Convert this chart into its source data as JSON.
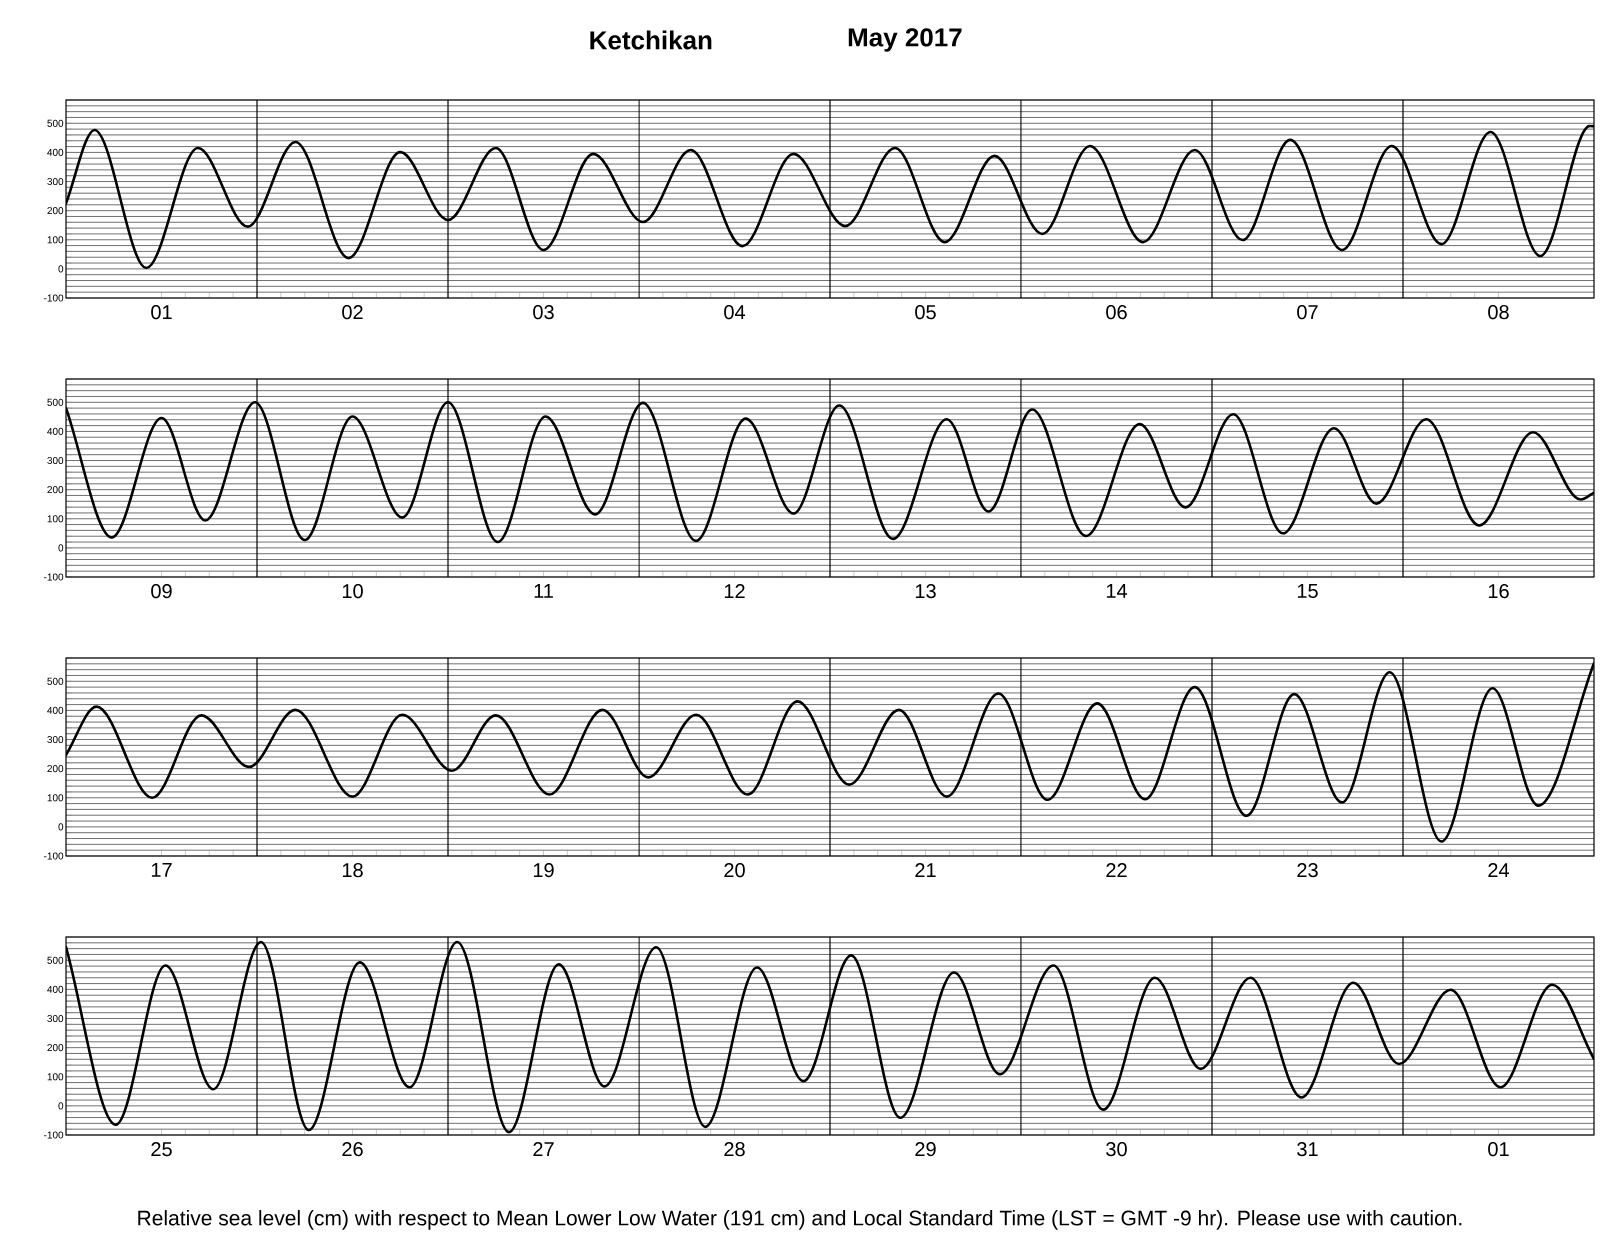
{
  "chart_data": [
    {
      "type": "line",
      "title": "Ketchikan",
      "subtitle": "May   2017",
      "grid": "y",
      "xlim": [
        "2017-05-01T00:00",
        "2017-05-09T00:00"
      ],
      "ylim": [
        -100,
        580
      ],
      "xticks": [
        {
          "value": "2017-05-01T12:00",
          "label": "01"
        },
        {
          "value": "2017-05-02T12:00",
          "label": "02"
        },
        {
          "value": "2017-05-03T12:00",
          "label": "03"
        },
        {
          "value": "2017-05-04T12:00",
          "label": "04"
        },
        {
          "value": "2017-05-05T12:00",
          "label": "05"
        },
        {
          "value": "2017-05-06T12:00",
          "label": "06"
        },
        {
          "value": "2017-05-07T12:00",
          "label": "07"
        },
        {
          "value": "2017-05-08T12:00",
          "label": "08"
        }
      ],
      "yticks": [
        -100,
        {
          "value": -80,
          "label": null
        },
        {
          "value": -60,
          "label": null
        },
        {
          "value": -40,
          "label": null
        },
        {
          "value": -20,
          "label": null
        },
        0,
        {
          "value": 20,
          "label": null
        },
        {
          "value": 40,
          "label": null
        },
        {
          "value": 60,
          "label": null
        },
        {
          "value": 80,
          "label": null
        },
        100,
        {
          "value": 120,
          "label": null
        },
        {
          "value": 140,
          "label": null
        },
        {
          "value": 160,
          "label": null
        },
        {
          "value": 180,
          "label": null
        },
        200,
        {
          "value": 220,
          "label": null
        },
        {
          "value": 240,
          "label": null
        },
        {
          "value": 260,
          "label": null
        },
        {
          "value": 280,
          "label": null
        },
        300,
        {
          "value": 320,
          "label": null
        },
        {
          "value": 340,
          "label": null
        },
        {
          "value": 360,
          "label": null
        },
        {
          "value": 380,
          "label": null
        },
        400,
        {
          "value": 420,
          "label": null
        },
        {
          "value": 440,
          "label": null
        },
        {
          "value": 460,
          "label": null
        },
        {
          "value": 480,
          "label": null
        },
        500,
        {
          "value": 520,
          "label": null
        },
        {
          "value": 540,
          "label": null
        },
        {
          "value": 560,
          "label": null
        },
        {
          "value": 580,
          "label": null
        }
      ],
      "ref_lines": [
        {
          "axis": "x",
          "value": "2017-05-02"
        },
        {
          "axis": "x",
          "value": "2017-05-03"
        },
        {
          "axis": "x",
          "value": "2017-05-04"
        },
        {
          "axis": "x",
          "value": "2017-05-05"
        },
        {
          "axis": "x",
          "value": "2017-05-06"
        },
        {
          "axis": "x",
          "value": "2017-05-07"
        },
        {
          "axis": "x",
          "value": "2017-05-08"
        }
      ],
      "series": [
        {
          "color": "#000000",
          "x": [
            "2017-05-01T00:00",
            "2017-05-01T03:35",
            "2017-05-01T10:05",
            "2017-05-01T16:35",
            "2017-05-01T22:50",
            "2017-05-02T04:50",
            "2017-05-02T11:30",
            "2017-05-02T18:00",
            "2017-05-03T00:00",
            "2017-05-03T06:00",
            "2017-05-03T12:00",
            "2017-05-03T18:15",
            "2017-05-04T00:30",
            "2017-05-04T06:30",
            "2017-05-04T13:00",
            "2017-05-04T19:25",
            "2017-05-05T01:55",
            "2017-05-05T08:10",
            "2017-05-05T14:25",
            "2017-05-05T20:40",
            "2017-05-06T02:40",
            "2017-05-06T08:40",
            "2017-05-06T15:20",
            "2017-05-06T21:50",
            "2017-05-07T03:50",
            "2017-05-07T09:50",
            "2017-05-07T16:20",
            "2017-05-07T22:35",
            "2017-05-08T04:50",
            "2017-05-08T11:00",
            "2017-05-08T17:15",
            "2017-05-08T23:30",
            "2017-05-09T00:00"
          ],
          "values": [
            225,
            477,
            3,
            415,
            145,
            436,
            37,
            401,
            168,
            415,
            65,
            395,
            161,
            408,
            78,
            395,
            147,
            415,
            92,
            388,
            120,
            422,
            92,
            408,
            99,
            443,
            65,
            422,
            85,
            470,
            44,
            491,
            490
          ]
        }
      ]
    },
    {
      "type": "line",
      "grid": "y",
      "xlim": [
        "2017-05-09T00:00",
        "2017-05-17T00:00"
      ],
      "ylim": [
        -100,
        580
      ],
      "xticks": [
        {
          "value": "2017-05-09T12:00",
          "label": "09"
        },
        {
          "value": "2017-05-10T12:00",
          "label": "10"
        },
        {
          "value": "2017-05-11T12:00",
          "label": "11"
        },
        {
          "value": "2017-05-12T12:00",
          "label": "12"
        },
        {
          "value": "2017-05-13T12:00",
          "label": "13"
        },
        {
          "value": "2017-05-14T12:00",
          "label": "14"
        },
        {
          "value": "2017-05-15T12:00",
          "label": "15"
        },
        {
          "value": "2017-05-16T12:00",
          "label": "16"
        }
      ],
      "yticks": [
        -100,
        {
          "value": -80,
          "label": null
        },
        {
          "value": -60,
          "label": null
        },
        {
          "value": -40,
          "label": null
        },
        {
          "value": -20,
          "label": null
        },
        0,
        {
          "value": 20,
          "label": null
        },
        {
          "value": 40,
          "label": null
        },
        {
          "value": 60,
          "label": null
        },
        {
          "value": 80,
          "label": null
        },
        100,
        {
          "value": 120,
          "label": null
        },
        {
          "value": 140,
          "label": null
        },
        {
          "value": 160,
          "label": null
        },
        {
          "value": 180,
          "label": null
        },
        200,
        {
          "value": 220,
          "label": null
        },
        {
          "value": 240,
          "label": null
        },
        {
          "value": 260,
          "label": null
        },
        {
          "value": 280,
          "label": null
        },
        300,
        {
          "value": 320,
          "label": null
        },
        {
          "value": 340,
          "label": null
        },
        {
          "value": 360,
          "label": null
        },
        {
          "value": 380,
          "label": null
        },
        400,
        {
          "value": 420,
          "label": null
        },
        {
          "value": 440,
          "label": null
        },
        {
          "value": 460,
          "label": null
        },
        {
          "value": 480,
          "label": null
        },
        500,
        {
          "value": 520,
          "label": null
        },
        {
          "value": 540,
          "label": null
        },
        {
          "value": 560,
          "label": null
        },
        {
          "value": 580,
          "label": null
        }
      ],
      "ref_lines": [
        {
          "axis": "x",
          "value": "2017-05-10"
        },
        {
          "axis": "x",
          "value": "2017-05-11"
        },
        {
          "axis": "x",
          "value": "2017-05-12"
        },
        {
          "axis": "x",
          "value": "2017-05-13"
        },
        {
          "axis": "x",
          "value": "2017-05-14"
        },
        {
          "axis": "x",
          "value": "2017-05-15"
        },
        {
          "axis": "x",
          "value": "2017-05-16"
        }
      ],
      "series": [
        {
          "color": "#000000",
          "x": [
            "2017-05-09T00:00",
            "2017-05-09T05:45",
            "2017-05-09T12:00",
            "2017-05-09T17:30",
            "2017-05-09T23:45",
            "2017-05-10T06:00",
            "2017-05-10T12:00",
            "2017-05-10T18:15",
            "2017-05-11T00:00",
            "2017-05-11T06:15",
            "2017-05-11T12:15",
            "2017-05-11T18:30",
            "2017-05-12T00:30",
            "2017-05-12T07:10",
            "2017-05-12T13:25",
            "2017-05-12T19:25",
            "2017-05-13T01:10",
            "2017-05-13T07:55",
            "2017-05-13T14:40",
            "2017-05-13T19:55",
            "2017-05-14T01:25",
            "2017-05-14T08:10",
            "2017-05-14T14:55",
            "2017-05-14T20:40",
            "2017-05-15T02:40",
            "2017-05-15T08:55",
            "2017-05-15T15:20",
            "2017-05-15T20:40",
            "2017-05-16T02:55",
            "2017-05-16T09:35",
            "2017-05-16T16:20",
            "2017-05-16T22:20",
            "2017-05-17T00:00"
          ],
          "values": [
            480,
            36,
            446,
            94,
            500,
            27,
            451,
            104,
            500,
            20,
            451,
            115,
            498,
            24,
            444,
            118,
            489,
            31,
            442,
            125,
            475,
            41,
            425,
            139,
            459,
            50,
            411,
            152,
            442,
            77,
            397,
            166,
            190
          ]
        }
      ]
    },
    {
      "type": "line",
      "grid": "y",
      "xlim": [
        "2017-05-17T00:00",
        "2017-05-25T00:00"
      ],
      "ylim": [
        -100,
        580
      ],
      "xticks": [
        {
          "value": "2017-05-17T12:00",
          "label": "17"
        },
        {
          "value": "2017-05-18T12:00",
          "label": "18"
        },
        {
          "value": "2017-05-19T12:00",
          "label": "19"
        },
        {
          "value": "2017-05-20T12:00",
          "label": "20"
        },
        {
          "value": "2017-05-21T12:00",
          "label": "21"
        },
        {
          "value": "2017-05-22T12:00",
          "label": "22"
        },
        {
          "value": "2017-05-23T12:00",
          "label": "23"
        },
        {
          "value": "2017-05-24T12:00",
          "label": "24"
        }
      ],
      "yticks": [
        -100,
        {
          "value": -80,
          "label": null
        },
        {
          "value": -60,
          "label": null
        },
        {
          "value": -40,
          "label": null
        },
        {
          "value": -20,
          "label": null
        },
        0,
        {
          "value": 20,
          "label": null
        },
        {
          "value": 40,
          "label": null
        },
        {
          "value": 60,
          "label": null
        },
        {
          "value": 80,
          "label": null
        },
        100,
        {
          "value": 120,
          "label": null
        },
        {
          "value": 140,
          "label": null
        },
        {
          "value": 160,
          "label": null
        },
        {
          "value": 180,
          "label": null
        },
        200,
        {
          "value": 220,
          "label": null
        },
        {
          "value": 240,
          "label": null
        },
        {
          "value": 260,
          "label": null
        },
        {
          "value": 280,
          "label": null
        },
        300,
        {
          "value": 320,
          "label": null
        },
        {
          "value": 340,
          "label": null
        },
        {
          "value": 360,
          "label": null
        },
        {
          "value": 380,
          "label": null
        },
        400,
        {
          "value": 420,
          "label": null
        },
        {
          "value": 440,
          "label": null
        },
        {
          "value": 460,
          "label": null
        },
        {
          "value": 480,
          "label": null
        },
        500,
        {
          "value": 520,
          "label": null
        },
        {
          "value": 540,
          "label": null
        },
        {
          "value": 560,
          "label": null
        },
        {
          "value": 580,
          "label": null
        }
      ],
      "ref_lines": [
        {
          "axis": "x",
          "value": "2017-05-18"
        },
        {
          "axis": "x",
          "value": "2017-05-19"
        },
        {
          "axis": "x",
          "value": "2017-05-20"
        },
        {
          "axis": "x",
          "value": "2017-05-21"
        },
        {
          "axis": "x",
          "value": "2017-05-22"
        },
        {
          "axis": "x",
          "value": "2017-05-23"
        },
        {
          "axis": "x",
          "value": "2017-05-24"
        }
      ],
      "series": [
        {
          "color": "#000000",
          "x": [
            "2017-05-17T00:00",
            "2017-05-17T03:50",
            "2017-05-17T10:50",
            "2017-05-17T17:00",
            "2017-05-17T23:00",
            "2017-05-18T04:50",
            "2017-05-18T12:00",
            "2017-05-18T18:15",
            "2017-05-19T00:30",
            "2017-05-19T06:00",
            "2017-05-19T12:45",
            "2017-05-19T19:25",
            "2017-05-20T01:10",
            "2017-05-20T07:10",
            "2017-05-20T13:40",
            "2017-05-20T19:55",
            "2017-05-21T02:25",
            "2017-05-21T08:40",
            "2017-05-21T14:40",
            "2017-05-21T21:10",
            "2017-05-22T03:20",
            "2017-05-22T09:35",
            "2017-05-22T15:35",
            "2017-05-22T21:50",
            "2017-05-23T04:20",
            "2017-05-23T10:20",
            "2017-05-23T16:20",
            "2017-05-23T22:20",
            "2017-05-24T04:50",
            "2017-05-24T11:15",
            "2017-05-24T17:00",
            "2017-05-25T00:00"
          ],
          "values": [
            247,
            413,
            100,
            383,
            206,
            402,
            104,
            385,
            193,
            383,
            111,
            402,
            170,
            385,
            111,
            431,
            145,
            402,
            104,
            458,
            93,
            424,
            95,
            480,
            38,
            456,
            84,
            531,
            -50,
            476,
            73,
            562
          ]
        }
      ]
    },
    {
      "type": "line",
      "grid": "y",
      "xlim": [
        "2017-05-25T00:00",
        "2017-06-02T00:00"
      ],
      "ylim": [
        -100,
        580
      ],
      "annotations": [
        "Relative sea level (cm) with respect to Mean Lower Low Water (191 cm) and Local Standard Time (LST = GMT -9 hr). Please use with caution."
      ],
      "xticks": [
        {
          "value": "2017-05-25T12:00",
          "label": "25"
        },
        {
          "value": "2017-05-26T12:00",
          "label": "26"
        },
        {
          "value": "2017-05-27T12:00",
          "label": "27"
        },
        {
          "value": "2017-05-28T12:00",
          "label": "28"
        },
        {
          "value": "2017-05-29T12:00",
          "label": "29"
        },
        {
          "value": "2017-05-30T12:00",
          "label": "30"
        },
        {
          "value": "2017-05-31T12:00",
          "label": "31"
        },
        {
          "value": "2017-06-01T12:00",
          "label": "01"
        }
      ],
      "yticks": [
        -100,
        {
          "value": -80,
          "label": null
        },
        {
          "value": -60,
          "label": null
        },
        {
          "value": -40,
          "label": null
        },
        {
          "value": -20,
          "label": null
        },
        0,
        {
          "value": 20,
          "label": null
        },
        {
          "value": 40,
          "label": null
        },
        {
          "value": 60,
          "label": null
        },
        {
          "value": 80,
          "label": null
        },
        100,
        {
          "value": 120,
          "label": null
        },
        {
          "value": 140,
          "label": null
        },
        {
          "value": 160,
          "label": null
        },
        {
          "value": 180,
          "label": null
        },
        200,
        {
          "value": 220,
          "label": null
        },
        {
          "value": 240,
          "label": null
        },
        {
          "value": 260,
          "label": null
        },
        {
          "value": 280,
          "label": null
        },
        300,
        {
          "value": 320,
          "label": null
        },
        {
          "value": 340,
          "label": null
        },
        {
          "value": 360,
          "label": null
        },
        {
          "value": 380,
          "label": null
        },
        400,
        {
          "value": 420,
          "label": null
        },
        {
          "value": 440,
          "label": null
        },
        {
          "value": 460,
          "label": null
        },
        {
          "value": 480,
          "label": null
        },
        500,
        {
          "value": 520,
          "label": null
        },
        {
          "value": 540,
          "label": null
        },
        {
          "value": 560,
          "label": null
        },
        {
          "value": 580,
          "label": null
        }
      ],
      "ref_lines": [
        {
          "axis": "x",
          "value": "2017-05-26"
        },
        {
          "axis": "x",
          "value": "2017-05-27"
        },
        {
          "axis": "x",
          "value": "2017-05-28"
        },
        {
          "axis": "x",
          "value": "2017-05-29"
        },
        {
          "axis": "x",
          "value": "2017-05-30"
        },
        {
          "axis": "x",
          "value": "2017-05-31"
        },
        {
          "axis": "x",
          "value": "2017-06-01"
        }
      ],
      "series": [
        {
          "color": "#000000",
          "x": [
            "2017-05-25T00:00",
            "2017-05-25T06:15",
            "2017-05-25T12:30",
            "2017-05-25T18:30",
            "2017-05-26T00:30",
            "2017-05-26T06:30",
            "2017-05-26T12:55",
            "2017-05-26T19:10",
            "2017-05-27T01:10",
            "2017-05-27T07:40",
            "2017-05-27T13:55",
            "2017-05-27T19:40",
            "2017-05-28T02:10",
            "2017-05-28T08:20",
            "2017-05-28T14:50",
            "2017-05-28T20:40",
            "2017-05-29T02:40",
            "2017-05-29T08:50",
            "2017-05-29T15:35",
            "2017-05-29T21:20",
            "2017-05-30T04:05",
            "2017-05-30T10:20",
            "2017-05-30T16:50",
            "2017-05-30T22:35",
            "2017-05-31T04:50",
            "2017-05-31T11:15",
            "2017-05-31T17:45",
            "2017-05-31T23:30",
            "2017-06-01T06:00",
            "2017-06-01T12:15",
            "2017-06-01T18:45",
            "2017-06-02T00:00"
          ],
          "values": [
            545,
            -65,
            482,
            57,
            563,
            -83,
            493,
            64,
            563,
            -90,
            486,
            67,
            545,
            -72,
            475,
            85,
            517,
            -41,
            458,
            109,
            482,
            -13,
            440,
            127,
            440,
            29,
            423,
            144,
            399,
            64,
            416,
            161
          ]
        }
      ]
    }
  ]
}
